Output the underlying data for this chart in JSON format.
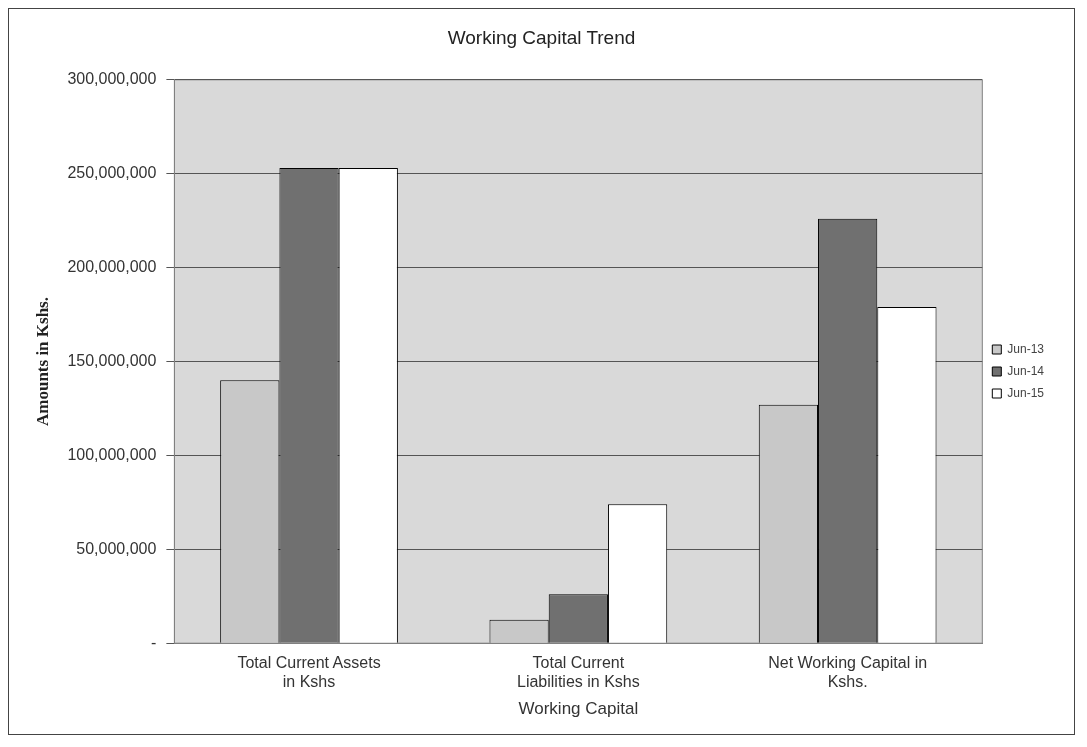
{
  "chart_data": {
    "type": "bar",
    "title": "Working Capital Trend",
    "xlabel": "Working Capital",
    "ylabel": "Amounts in Kshs.",
    "categories": [
      "Total Current Assets in Kshs",
      "Total Current Liabilities in Kshs",
      "Net Working Capital in Kshs."
    ],
    "series": [
      {
        "name": "Jun-13",
        "color": "#c8c8c8",
        "values": [
          140000000,
          12500000,
          127000000
        ]
      },
      {
        "name": "Jun-14",
        "color": "#707070",
        "values": [
          253000000,
          26000000,
          226000000
        ]
      },
      {
        "name": "Jun-15",
        "color": "#ffffff",
        "values": [
          253000000,
          74000000,
          179000000
        ]
      }
    ],
    "ylim": [
      0,
      300000000
    ],
    "yticks": [
      {
        "value": 0,
        "label": "-"
      },
      {
        "value": 50000000,
        "label": "50,000,000"
      },
      {
        "value": 100000000,
        "label": "100,000,000"
      },
      {
        "value": 150000000,
        "label": "150,000,000"
      },
      {
        "value": 200000000,
        "label": "200,000,000"
      },
      {
        "value": 250000000,
        "label": "250,000,000"
      },
      {
        "value": 300000000,
        "label": "300,000,000"
      }
    ],
    "grid": "y",
    "legend": "right"
  }
}
